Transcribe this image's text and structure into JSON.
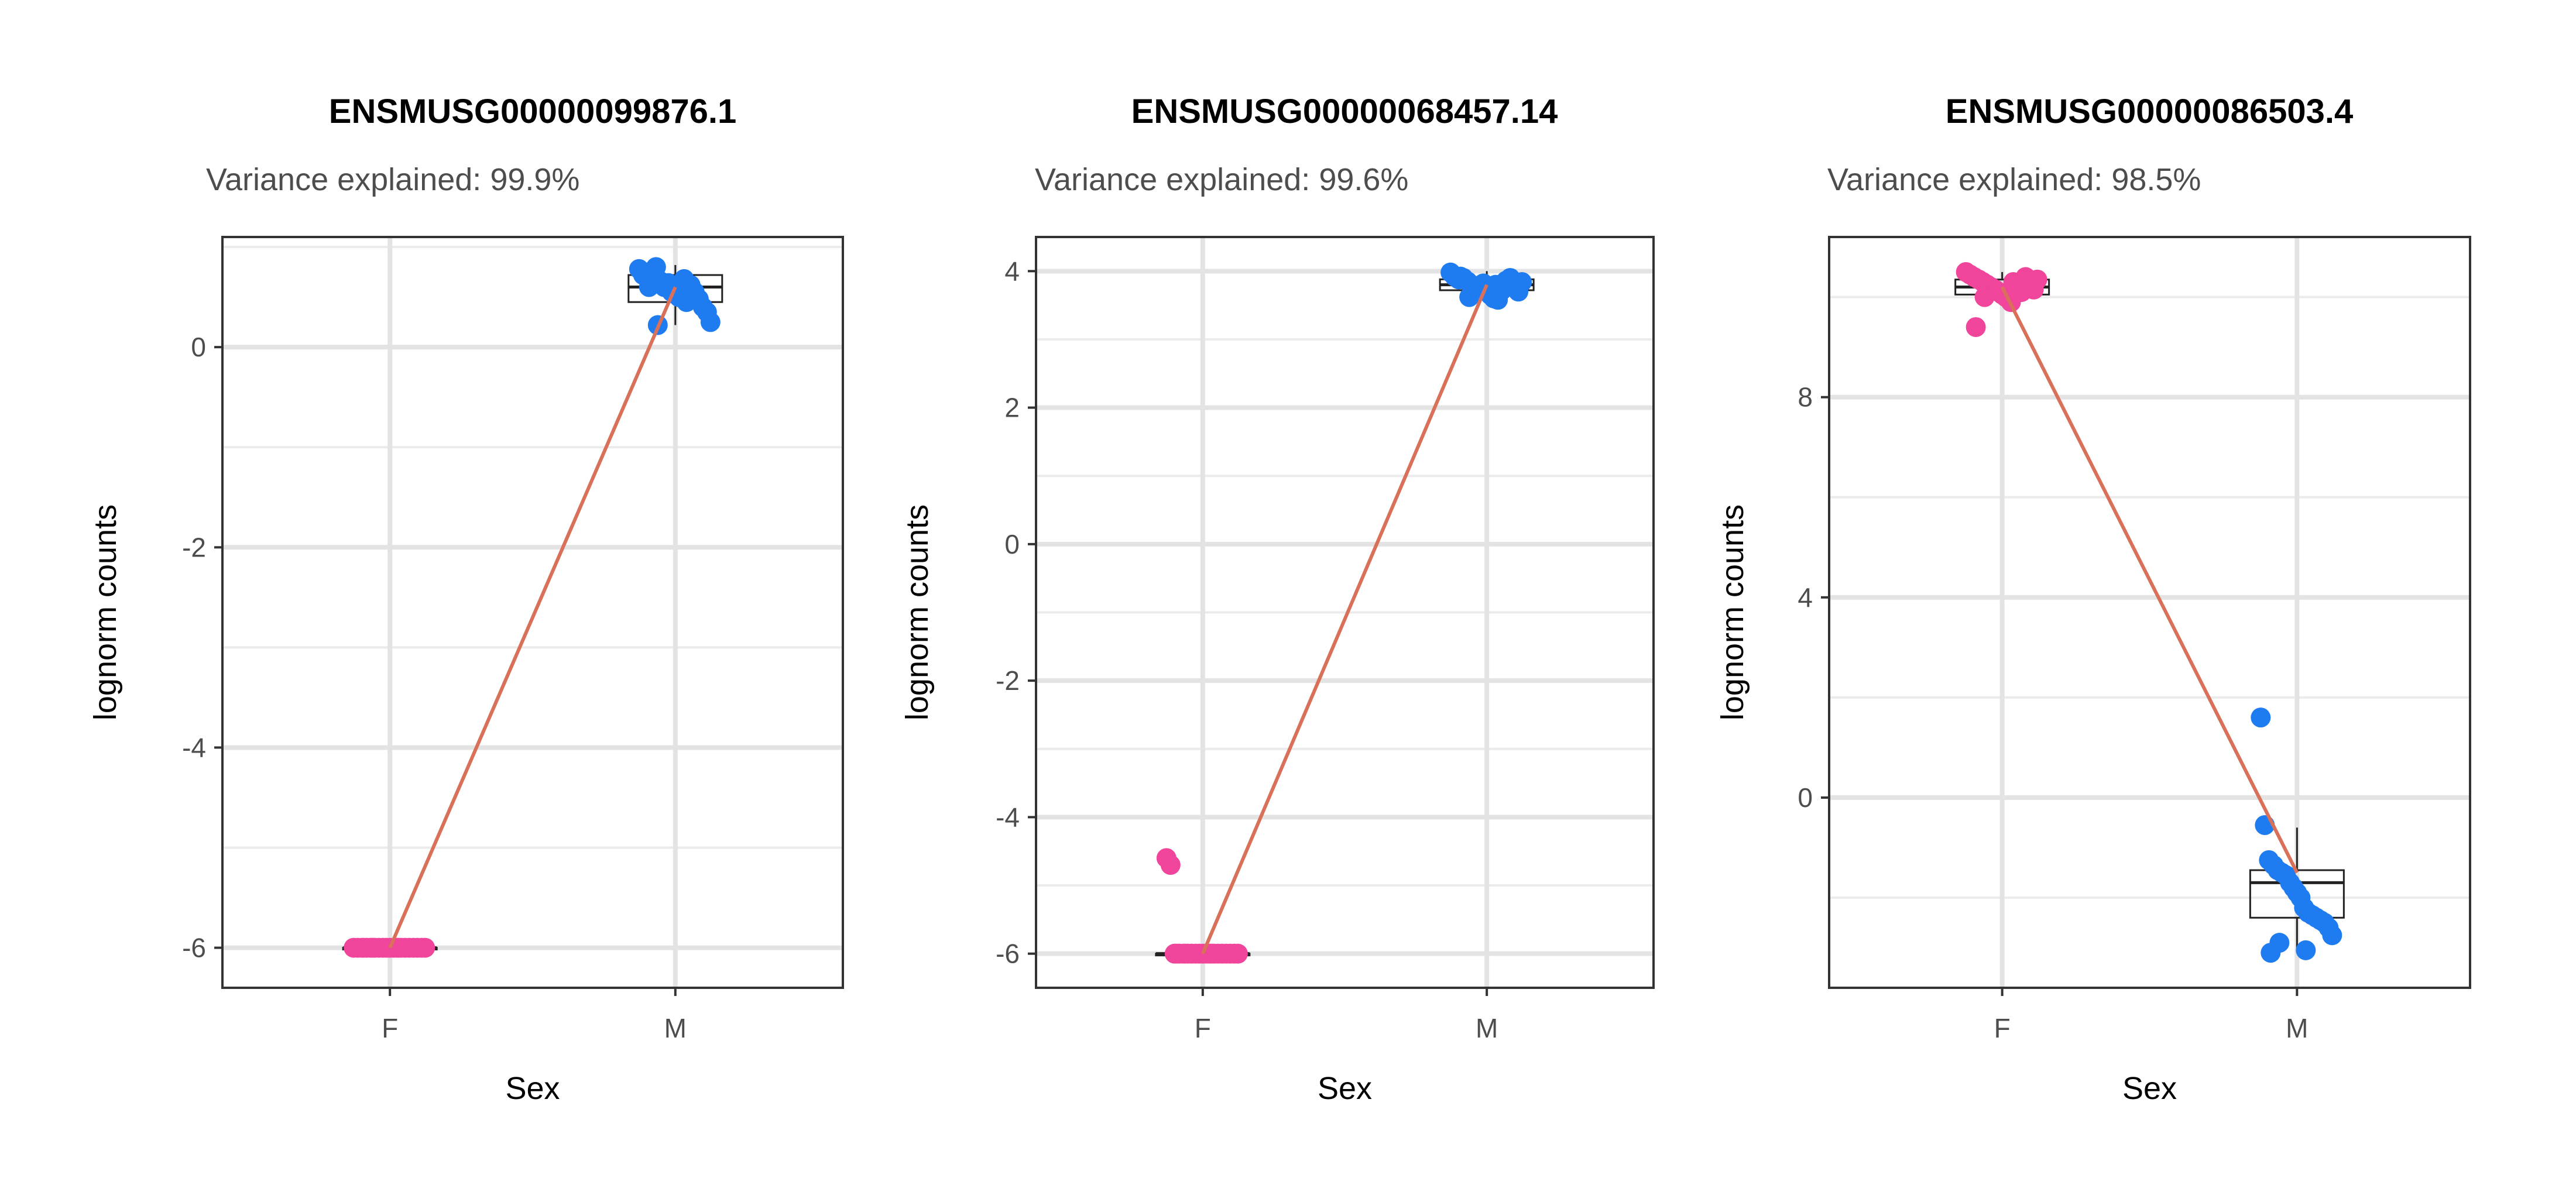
{
  "chart_data": [
    {
      "type": "scatter",
      "title": "ENSMUSG00000099876.1",
      "subtitle": "Variance explained: 99.9%",
      "xlabel": "Sex",
      "ylabel": "lognorm counts",
      "categories": [
        "F",
        "M"
      ],
      "ylim": [
        -6.4,
        1.1
      ],
      "yticks": [
        0,
        -2,
        -4,
        -6
      ],
      "ytick_labels": [
        "0",
        "-2",
        "-4",
        "-6"
      ],
      "grid": true,
      "trend_line": [
        -6.0,
        0.6
      ],
      "boxplots": [
        {
          "category": "F",
          "q1": -6.0,
          "median": -6.0,
          "q3": -6.0,
          "whisker_low": -6.0,
          "whisker_high": -6.0
        },
        {
          "category": "M",
          "q1": 0.45,
          "median": 0.6,
          "q3": 0.72,
          "whisker_low": 0.22,
          "whisker_high": 0.82
        }
      ],
      "series": [
        {
          "category": "F",
          "color": "#f0459b",
          "y": [
            -6.0,
            -6.0,
            -6.0,
            -6.0,
            -6.0,
            -6.0,
            -6.0,
            -6.0,
            -6.0,
            -6.0,
            -6.0,
            -6.0,
            -6.0,
            -6.0,
            -6.0,
            -6.0,
            -6.0,
            -6.0,
            -6.0,
            -6.0,
            -6.0,
            -6.0
          ]
        },
        {
          "category": "M",
          "color": "#1e7bf0",
          "y": [
            0.78,
            0.72,
            0.7,
            0.76,
            0.8,
            0.66,
            0.6,
            0.64,
            0.55,
            0.58,
            0.5,
            0.52,
            0.45,
            0.62,
            0.55,
            0.48,
            0.4,
            0.35,
            0.25,
            0.22,
            0.68,
            0.6
          ]
        }
      ]
    },
    {
      "type": "scatter",
      "title": "ENSMUSG00000068457.14",
      "subtitle": "Variance explained: 99.6%",
      "xlabel": "Sex",
      "ylabel": "lognorm counts",
      "categories": [
        "F",
        "M"
      ],
      "ylim": [
        -6.5,
        4.5
      ],
      "yticks": [
        4,
        2,
        0,
        -2,
        -4,
        -6
      ],
      "ytick_labels": [
        "4",
        "2",
        "0",
        "-2",
        "-4",
        "-6"
      ],
      "grid": true,
      "trend_line": [
        -6.0,
        3.8
      ],
      "boxplots": [
        {
          "category": "F",
          "q1": -6.0,
          "median": -6.0,
          "q3": -6.0,
          "whisker_low": -6.0,
          "whisker_high": -6.0
        },
        {
          "category": "M",
          "q1": 3.72,
          "median": 3.8,
          "q3": 3.88,
          "whisker_low": 3.58,
          "whisker_high": 4.0
        }
      ],
      "series": [
        {
          "category": "F",
          "color": "#f0459b",
          "y": [
            -4.6,
            -4.7,
            -6.0,
            -6.0,
            -6.0,
            -6.0,
            -6.0,
            -6.0,
            -6.0,
            -6.0,
            -6.0,
            -6.0,
            -6.0,
            -6.0,
            -6.0,
            -6.0,
            -6.0,
            -6.0,
            -6.0,
            -6.0,
            -6.0,
            -6.0
          ]
        },
        {
          "category": "M",
          "color": "#1e7bf0",
          "y": [
            3.98,
            3.92,
            3.88,
            3.9,
            3.85,
            3.8,
            3.78,
            3.75,
            3.82,
            3.7,
            3.65,
            3.6,
            3.58,
            3.72,
            3.86,
            3.9,
            3.76,
            3.7,
            3.84,
            3.62,
            3.8,
            3.92
          ]
        }
      ]
    },
    {
      "type": "scatter",
      "title": "ENSMUSG00000086503.4",
      "subtitle": "Variance explained: 98.5%",
      "xlabel": "Sex",
      "ylabel": "lognorm counts",
      "categories": [
        "F",
        "M"
      ],
      "ylim": [
        -3.8,
        11.2
      ],
      "yticks": [
        8,
        4,
        0
      ],
      "ytick_labels": [
        "8",
        "4",
        "0"
      ],
      "grid": true,
      "trend_line": [
        10.2,
        -1.5
      ],
      "boxplots": [
        {
          "category": "F",
          "q1": 10.05,
          "median": 10.2,
          "q3": 10.35,
          "whisker_low": 9.9,
          "whisker_high": 10.5
        },
        {
          "category": "M",
          "q1": -2.4,
          "median": -1.7,
          "q3": -1.45,
          "whisker_low": -3.1,
          "whisker_high": -0.6
        }
      ],
      "series": [
        {
          "category": "F",
          "color": "#f0459b",
          "y": [
            10.5,
            10.45,
            10.4,
            10.35,
            10.3,
            10.25,
            10.2,
            10.15,
            10.1,
            10.05,
            10.0,
            9.95,
            10.3,
            10.2,
            10.1,
            10.4,
            10.25,
            10.15,
            10.35,
            10.0,
            9.9,
            9.4
          ]
        },
        {
          "category": "M",
          "color": "#1e7bf0",
          "y": [
            1.6,
            -0.55,
            -1.25,
            -1.35,
            -1.45,
            -1.5,
            -1.55,
            -1.7,
            -1.8,
            -1.9,
            -2.0,
            -2.2,
            -2.3,
            -2.35,
            -2.4,
            -2.45,
            -2.5,
            -2.6,
            -2.75,
            -2.9,
            -3.05,
            -3.1
          ]
        }
      ]
    }
  ]
}
